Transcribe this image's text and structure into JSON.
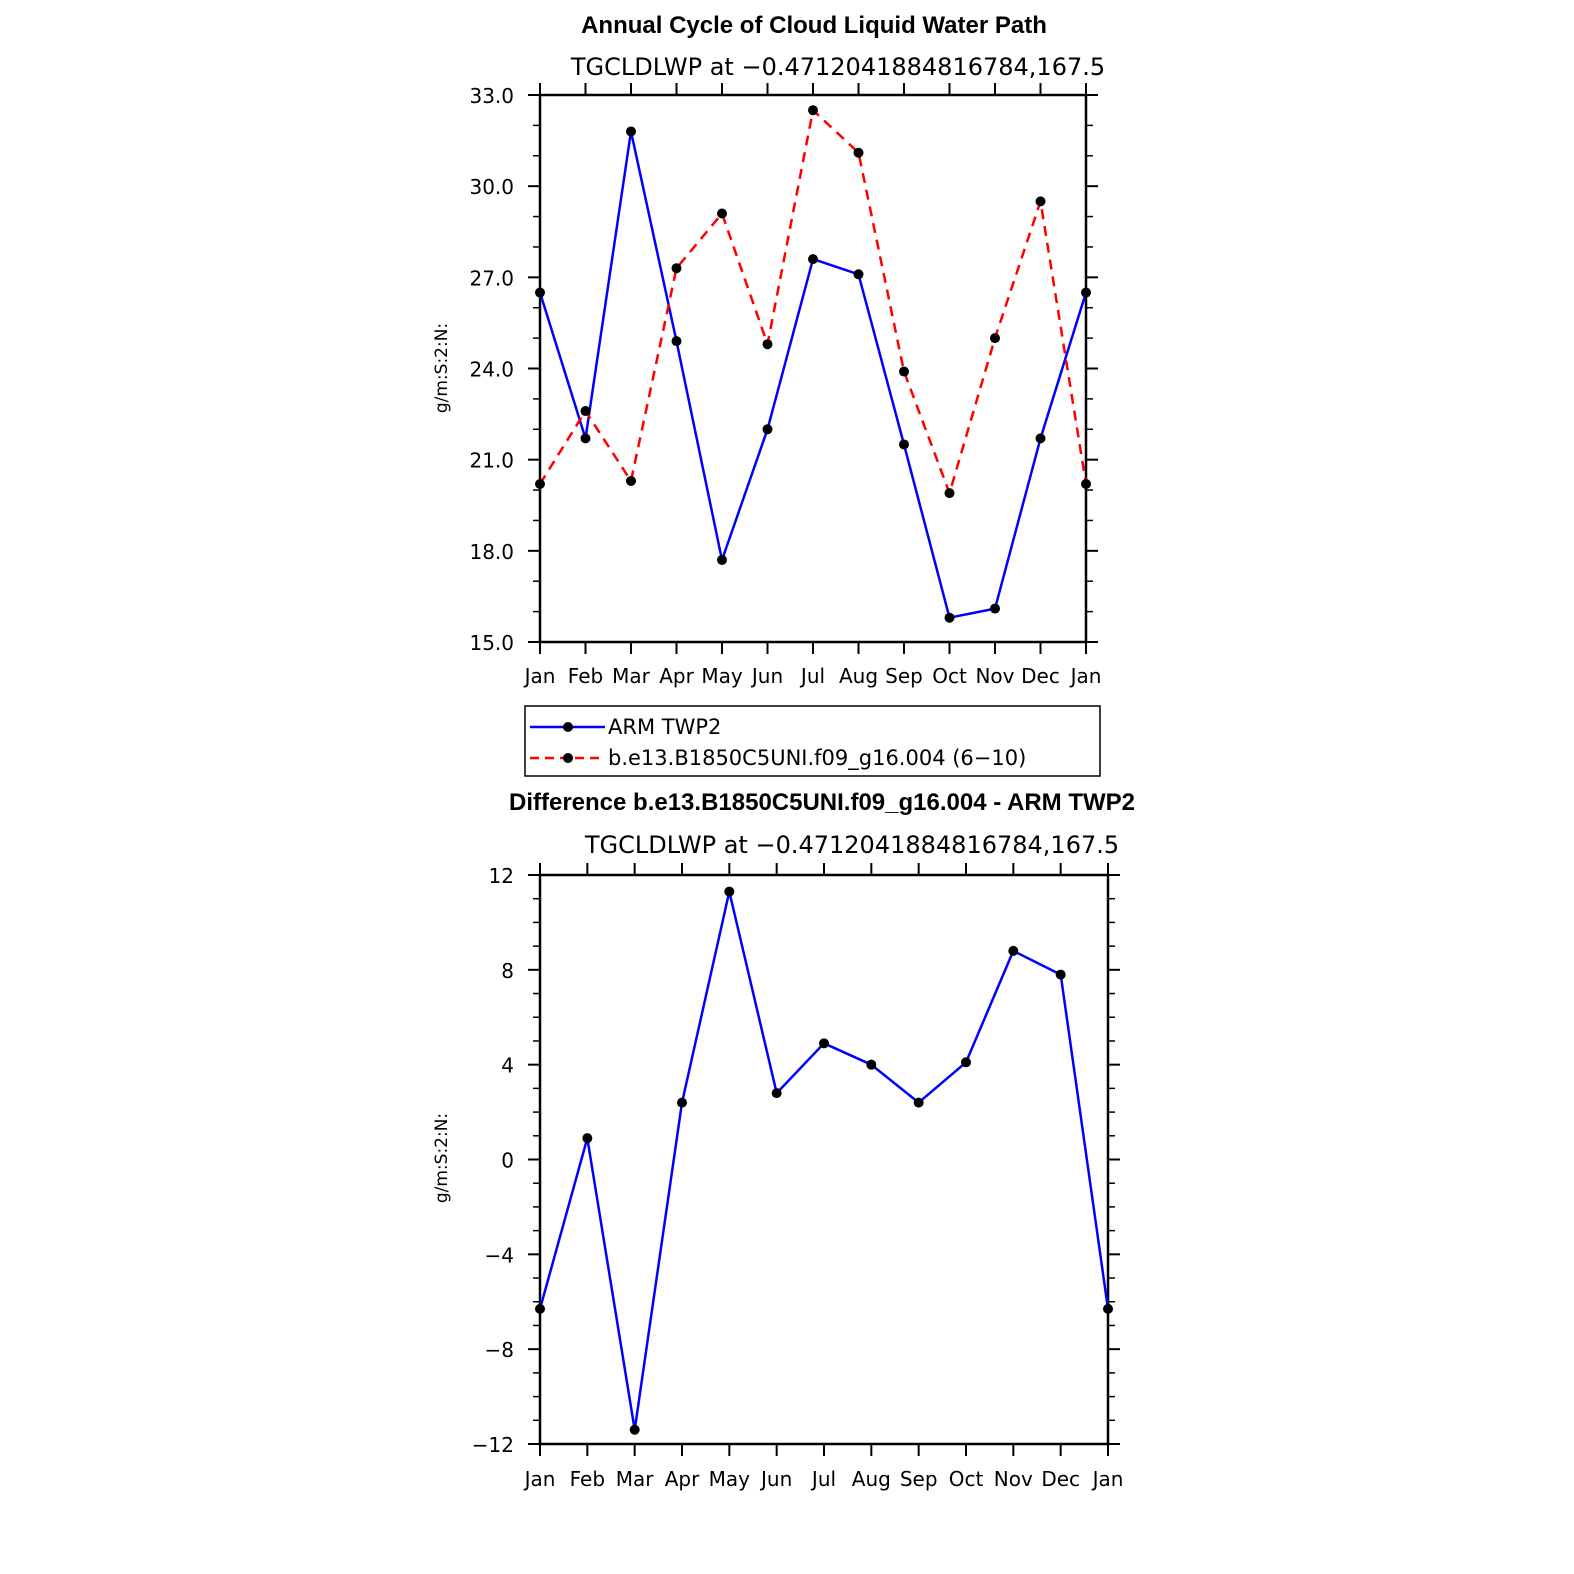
{
  "chart_data": [
    {
      "type": "line",
      "title": "Annual Cycle of Cloud Liquid Water Path",
      "subtitle": "TGCLDLWP at −0.4712041884816784,167.5",
      "ylabel": "g/m:S:2:N:",
      "xlabel": "",
      "ylim": [
        15.0,
        33.0
      ],
      "yticks": [
        "15.0",
        "18.0",
        "21.0",
        "24.0",
        "27.0",
        "30.0",
        "33.0"
      ],
      "ytick_values": [
        15,
        18,
        21,
        24,
        27,
        30,
        33
      ],
      "categories": [
        "Jan",
        "Feb",
        "Mar",
        "Apr",
        "May",
        "Jun",
        "Jul",
        "Aug",
        "Sep",
        "Oct",
        "Nov",
        "Dec",
        "Jan"
      ],
      "grid": false,
      "legend_position": "bottom",
      "series": [
        {
          "name": "ARM TWP2",
          "color": "#0000ff",
          "dash": "solid",
          "values": [
            26.5,
            21.7,
            31.8,
            24.9,
            17.7,
            22.0,
            27.6,
            27.1,
            21.5,
            15.8,
            16.1,
            21.7,
            26.5
          ]
        },
        {
          "name": "b.e13.B1850C5UNI.f09_g16.004 (6−10)",
          "color": "#ff0000",
          "dash": "dashed",
          "values": [
            20.2,
            22.6,
            20.3,
            27.3,
            29.1,
            24.8,
            32.5,
            31.1,
            23.9,
            19.9,
            25.0,
            29.5,
            20.2
          ]
        }
      ]
    },
    {
      "type": "line",
      "title": "Difference b.e13.B1850C5UNI.f09_g16.004 - ARM TWP2",
      "subtitle": "TGCLDLWP at −0.4712041884816784,167.5",
      "ylabel": "g/m:S:2:N:",
      "xlabel": "",
      "ylim": [
        -12,
        12
      ],
      "yticks": [
        "−12",
        "−8",
        "−4",
        "0",
        "4",
        "8",
        "12"
      ],
      "ytick_values": [
        -12,
        -8,
        -4,
        0,
        4,
        8,
        12
      ],
      "categories": [
        "Jan",
        "Feb",
        "Mar",
        "Apr",
        "May",
        "Jun",
        "Jul",
        "Aug",
        "Sep",
        "Oct",
        "Nov",
        "Dec",
        "Jan"
      ],
      "grid": false,
      "series": [
        {
          "color": "#0000ff",
          "dash": "solid",
          "values": [
            -6.3,
            0.9,
            -11.4,
            2.4,
            11.3,
            2.8,
            4.9,
            4.0,
            2.4,
            4.1,
            8.8,
            7.8,
            -6.3
          ]
        }
      ]
    }
  ]
}
